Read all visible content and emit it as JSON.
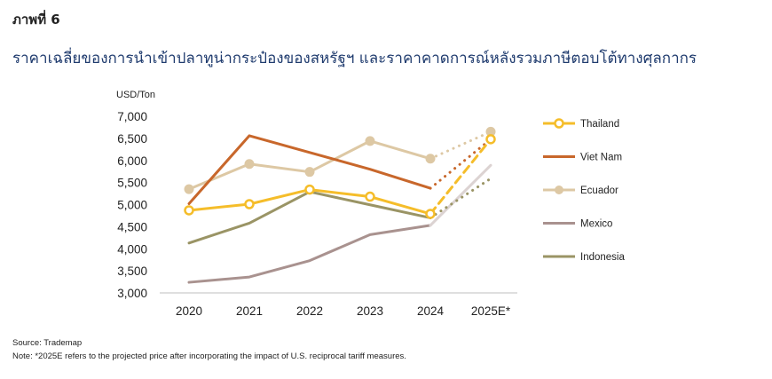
{
  "figure_label": "ภาพที่ 6",
  "figure_title": "ราคาเฉลี่ยของการนำเข้าปลาทูน่ากระป๋องของสหรัฐฯ และราคาคาดการณ์หลังรวมภาษีตอบโต้ทางศุลกากร",
  "source": "Source: Trademap",
  "note": "Note: *2025E refers to the projected price after incorporating the impact of U.S. reciprocal tariff measures.",
  "chart_data": {
    "type": "line",
    "unit_label": "USD/Ton",
    "categories": [
      "2020",
      "2021",
      "2022",
      "2023",
      "2024",
      "2025E*"
    ],
    "ylim": [
      3000,
      7000
    ],
    "yticks": [
      3000,
      3500,
      4000,
      4500,
      5000,
      5500,
      6000,
      6500,
      7000
    ],
    "ytick_labels": [
      "3,000",
      "3,500",
      "4,000",
      "4,500",
      "5,000",
      "5,500",
      "6,000",
      "6,500",
      "7,000"
    ],
    "projected_from_index": 4,
    "legend_position": "right",
    "grid": false,
    "series": [
      {
        "name": "Thailand",
        "color": "#F5BD2A",
        "marker": "circle",
        "values": [
          4870,
          5010,
          5340,
          5180,
          4790,
          6480
        ]
      },
      {
        "name": "Viet Nam",
        "color": "#C8672B",
        "marker": "none",
        "values": [
          5020,
          6560,
          null,
          5800,
          5370,
          6480
        ]
      },
      {
        "name": "Ecuador",
        "color": "#DDC8A4",
        "marker": "circle-filled",
        "values": [
          5350,
          5920,
          5740,
          6440,
          6040,
          6650
        ]
      },
      {
        "name": "Mexico",
        "color": "#A9928F",
        "marker": "none",
        "values": [
          3240,
          3360,
          3730,
          4320,
          4530,
          5890
        ]
      },
      {
        "name": "Indonesia",
        "color": "#9A9465",
        "marker": "none",
        "values": [
          4130,
          4580,
          5290,
          null,
          4700,
          5590
        ]
      }
    ]
  }
}
